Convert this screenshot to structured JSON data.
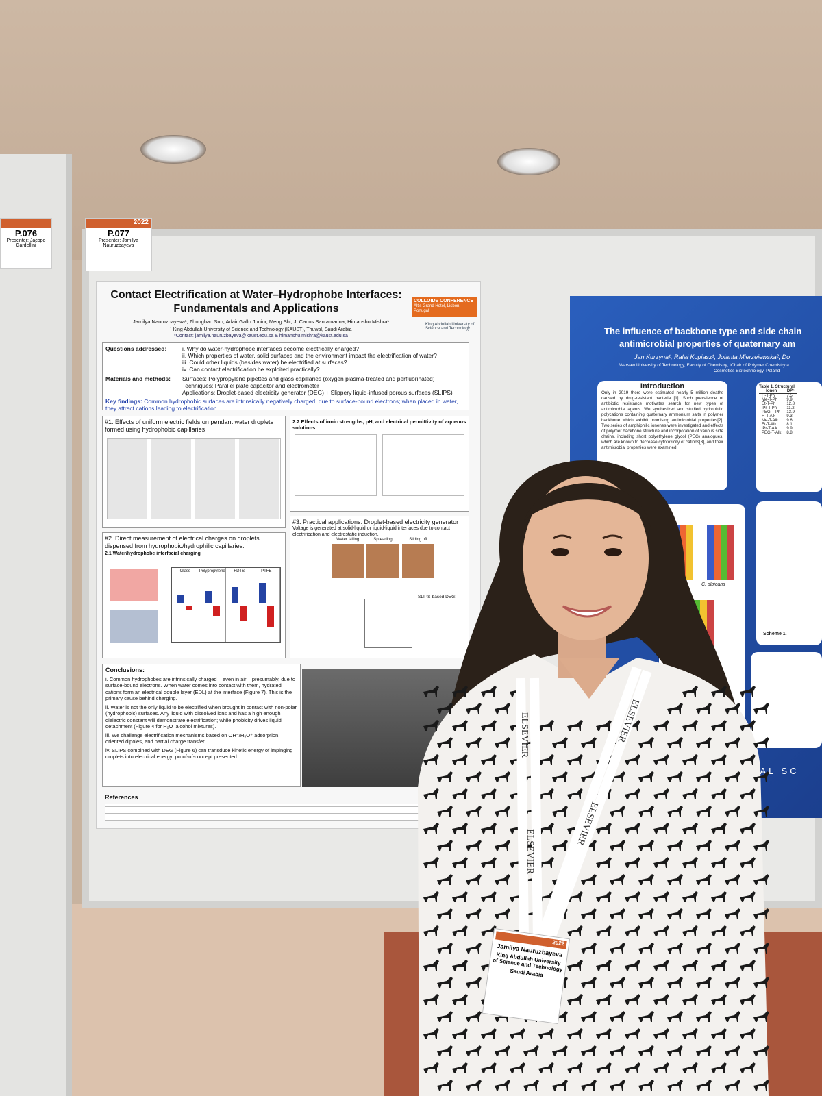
{
  "badges": [
    {
      "code": "P.076",
      "presenter": "Presenter: Jacopo Cardellini"
    },
    {
      "code": "P.077",
      "presenter": "Presenter: Jamilya Nauruzbayeva",
      "year": "2022"
    }
  ],
  "poster_left": {
    "title": "Contact Electrification at Water–Hydrophobe Interfaces: Fundamentals and Applications",
    "authors": "Jamilya Nauruzbayeva¹, Zhonghao Sun, Adair Gallo Junior, Meng Shi, J. Carlos Santamarina, Himanshu Mishra¹",
    "affiliation": "¹ King Abdullah University of Science and Technology (KAUST), Thuwal, Saudi Arabia",
    "contact": "*Contact: jamilya.nauruzbayeva@kaust.edu.sa & himanshu.mishra@kaust.edu.sa",
    "conference": "COLLOIDS CONFERENCE",
    "venue": "Altis Grand Hotel, Lisbon, Portugal",
    "university": "King Abdullah University of Science and Technology",
    "questions_heading": "Questions addressed:",
    "questions": [
      "i. Why do water-hydrophobe interfaces become electrically charged?",
      "ii. Which properties of water, solid surfaces and the environment impact the electrification of water?",
      "iii. Could other liquids (besides water) be electrified at surfaces?",
      "iv. Can contact electrification be exploited practically?"
    ],
    "methods_heading": "Materials and methods:",
    "methods": [
      "Surfaces: Polypropylene pipettes and glass capillaries (oxygen plasma-treated and perfluorinated)",
      "Techniques: Parallel plate capacitor and electrometer",
      "Applications: Droplet-based electricity generator (DEG) + Slippery liquid-infused porous surfaces (SLIPS)"
    ],
    "key_heading": "Key findings:",
    "key_text": "Common hydrophobic surfaces are intrinsically negatively charged, due to surface-bound electrons; when placed in water, they attract cations leading to electrification.",
    "section1": "#1. Effects of uniform electric fields on pendant water droplets formed using hydrophobic capillaries",
    "section22": "2.2 Effects of ionic strengths, pH, and electrical permittivity of aqueous solutions",
    "section2": "#2. Direct measurement of electrical charges on droplets dispensed from hydrophobic/hydrophilic capillaries:",
    "section21": "2.1 Water/hydrophobe interfacial charging",
    "bar_labels": [
      "Glass",
      "Polypropylene",
      "FDTS",
      "PTFE"
    ],
    "section3": "#3. Practical applications: Droplet-based electricity generator",
    "section3_text": "Voltage is generated at solid-liquid or liquid-liquid interfaces due to contact electrification and electrostatic induction.",
    "photo_labels": [
      "Water falling",
      "Spreading",
      "Sliding off"
    ],
    "slips_heading": "SLIPS-based DEG:",
    "conclusions_heading": "Conclusions:",
    "conclusions": [
      "i. Common hydrophobes are intrinsically charged – even in air – presumably, due to surface-bound electrons. When water comes into contact with them, hydrated cations form an electrical double layer (EDL) at the interface (Figure 7). This is the primary cause behind charging.",
      "ii. Water is not the only liquid to be electrified when brought in contact with non-polar (hydrophobic) surfaces. Any liquid with dissolved ions and has a high enough dielectric constant will demonstrate electrification; while phobicity drives liquid detachment (Figure 4 for H₂O–alcohol mixtures).",
      "iii. We challenge electrification mechanisms based on OH⁻/H₃O⁺ adsorption, oriented dipoles, and partial charge transfer.",
      "iv. SLIPS combined with DEG (Figure 6) can transduce kinetic energy of impinging droplets into electrical energy; proof-of-concept presented."
    ],
    "references_heading": "References"
  },
  "poster_right": {
    "title": "The influence of backbone type and side chain",
    "title2": "antimicrobial properties of quaternary am",
    "authors": "Jan Kurzyna¹, Rafał Kopiasz¹, Jolanta Mierzejewska², Do",
    "affiliation": "Warsaw University of Technology, Faculty of Chemistry, ¹Chair of Polymer Chemistry a",
    "affiliation2": "Cosmetics Biotechnology, Poland",
    "intro_heading": "Introduction",
    "intro_text": "Only in 2019 there were estimated nearly 5 million deaths caused by drug-resistant bacteria [1]. Such prevalence of antibiotic resistance motivates search for new types of antimicrobial agents. We synthesized and studied hydrophilic polycations containing quaternary ammonium salts in polymer backbone which exhibit promising antimicrobial properties[2]. Two series of amphiphilic ionenes were investigated and effects of polymer backbone structure and incorporation of various side chains, including short polyethylene glycol (PEG) analogues, which are known to decrease cytotoxicity of cations[3], and their antimicrobial properties were examined.",
    "table_title": "Table 1. Structural",
    "table_header": [
      "Ionen",
      "DPⁿ"
    ],
    "table_rows": [
      [
        "H-T-Ph",
        "7.5"
      ],
      [
        "Me-T-Ph",
        "9.9"
      ],
      [
        "Et-T-Ph",
        "12.8"
      ],
      [
        "iPr-T-Ph",
        "11.2"
      ],
      [
        "PEG-T-Ph",
        "13.9"
      ],
      [
        "H-T-Alk",
        "9.3"
      ],
      [
        "Me-T-Alk",
        "9.6"
      ],
      [
        "Et-T-Alk",
        "8.1"
      ],
      [
        "iPr-T-Alk",
        "9.9"
      ],
      [
        "PEG-T-Alk",
        "8.8"
      ]
    ],
    "organism": "C. albicans",
    "scheme": "Scheme 1.",
    "footer": "ONAL SC"
  },
  "lanyard": "ELSEVIER",
  "name_badge": {
    "name": "Jamilya Nauruzbayeva",
    "affiliation": "King Abdullah University of Science and Technology",
    "country": "Saudi Arabia",
    "year": "2022"
  }
}
